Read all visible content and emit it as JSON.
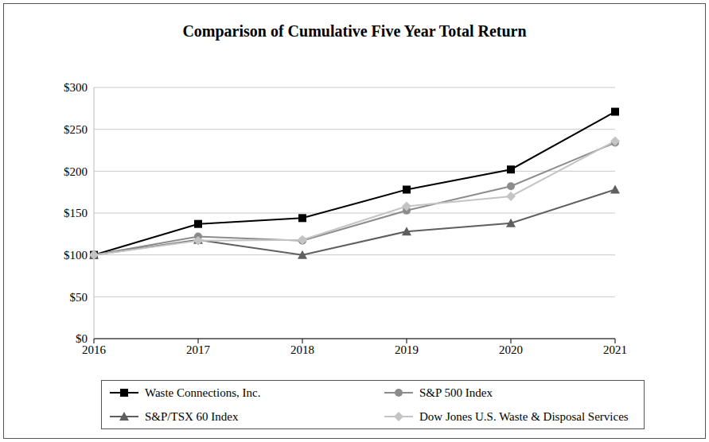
{
  "chart_data": {
    "type": "line",
    "title": "Comparison of Cumulative Five Year Total Return",
    "categories": [
      "2016",
      "2017",
      "2018",
      "2019",
      "2020",
      "2021"
    ],
    "ylim": [
      0,
      300
    ],
    "yticks": [
      {
        "value": 0,
        "label": "$0"
      },
      {
        "value": 50,
        "label": "$50"
      },
      {
        "value": 100,
        "label": "$100"
      },
      {
        "value": 150,
        "label": "$150"
      },
      {
        "value": 200,
        "label": "$200"
      },
      {
        "value": 250,
        "label": "$250"
      },
      {
        "value": 300,
        "label": "$300"
      }
    ],
    "grid": true,
    "legend": "bottom",
    "series": [
      {
        "name": "Waste Connections, Inc.",
        "color": "#000000",
        "marker": "square",
        "values": [
          100,
          137,
          144,
          178,
          202,
          271
        ]
      },
      {
        "name": "S&P 500 Index",
        "color": "#8c8c8c",
        "marker": "circle",
        "values": [
          100,
          122,
          117,
          153,
          182,
          234
        ]
      },
      {
        "name": "S&P/TSX 60 Index",
        "color": "#5f5f5f",
        "marker": "triangle",
        "values": [
          100,
          118,
          100,
          128,
          138,
          178
        ]
      },
      {
        "name": "Dow Jones U.S. Waste & Disposal Services",
        "color": "#c4c4c4",
        "marker": "diamond",
        "values": [
          100,
          117,
          118,
          158,
          170,
          236
        ]
      }
    ]
  }
}
